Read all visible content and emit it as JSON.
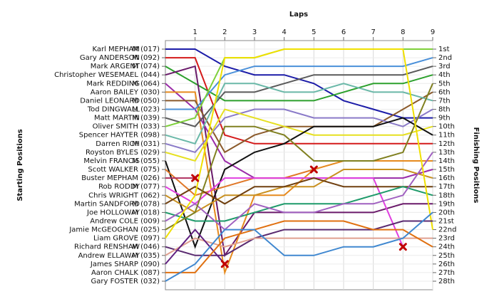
{
  "chart_data": {
    "type": "line",
    "x_label": "Laps",
    "y_label": "Starting Positions",
    "y2_label": "Finishing Positions",
    "x": [
      0,
      1,
      2,
      3,
      4,
      5,
      6,
      7,
      8,
      9
    ],
    "xlim": [
      0,
      9
    ],
    "xticks": [
      1,
      2,
      3,
      4,
      5,
      6,
      7,
      8,
      9
    ],
    "ylim": [
      1,
      28
    ],
    "y_inverted": true,
    "grid": true,
    "y2lim": [
      1,
      28
    ],
    "y2ticks": [
      {
        "value": 1,
        "label": "1st"
      },
      {
        "value": 2,
        "label": "2nd"
      },
      {
        "value": 3,
        "label": "3rd"
      },
      {
        "value": 4,
        "label": "4th"
      },
      {
        "value": 5,
        "label": "5th"
      },
      {
        "value": 6,
        "label": "6th"
      },
      {
        "value": 7,
        "label": "7th"
      },
      {
        "value": 8,
        "label": "8th"
      },
      {
        "value": 9,
        "label": "9th"
      },
      {
        "value": 10,
        "label": "10th"
      },
      {
        "value": 11,
        "label": "11th"
      },
      {
        "value": 12,
        "label": "12th"
      },
      {
        "value": 13,
        "label": "13th"
      },
      {
        "value": 14,
        "label": "14th"
      },
      {
        "value": 15,
        "label": "15th"
      },
      {
        "value": 16,
        "label": "16th"
      },
      {
        "value": 17,
        "label": "17th"
      },
      {
        "value": 18,
        "label": "18th"
      },
      {
        "value": 19,
        "label": "19th"
      },
      {
        "value": 20,
        "label": "20th"
      },
      {
        "value": 21,
        "label": "21st"
      },
      {
        "value": 22,
        "label": "22nd"
      },
      {
        "value": 23,
        "label": "23rd"
      },
      {
        "value": 24,
        "label": "24th"
      },
      {
        "value": 25,
        "label": "25th"
      },
      {
        "value": 26,
        "label": "26th"
      },
      {
        "value": 27,
        "label": "27th"
      },
      {
        "value": 28,
        "label": "28th"
      }
    ],
    "series": [
      {
        "name": "Karl MEPHAM",
        "class": "M (017)",
        "color": "#1c1ca8",
        "values": [
          1,
          1,
          3,
          4,
          4,
          5,
          7,
          8,
          9,
          9
        ]
      },
      {
        "name": "Gary ANDERSON",
        "class": "M (092)",
        "color": "#d41a1a",
        "values": [
          2,
          2,
          11,
          12,
          12,
          12,
          12,
          12,
          12,
          12
        ]
      },
      {
        "name": "Mark ARGENT",
        "class": "M (074)",
        "color": "#2ca02c",
        "values": [
          3,
          5,
          7,
          7,
          7,
          7,
          6,
          5,
          5,
          4
        ]
      },
      {
        "name": "Christopher WESEMAEL (044)",
        "color": "#6a1a6a",
        "values": [
          4,
          3,
          25,
          20,
          20,
          20,
          20,
          20,
          19,
          19
        ]
      },
      {
        "name": "Mark REDDING",
        "class": "M (064)",
        "color": "#9a2ba8",
        "values": [
          5,
          8,
          14,
          16,
          16,
          16,
          16,
          16,
          16,
          15
        ]
      },
      {
        "name": "Aaron BAILEY (030)",
        "color": "#e68a1e",
        "values": [
          6,
          6,
          27,
          18,
          18,
          15,
          14,
          14,
          14,
          14
        ]
      },
      {
        "name": "Daniel LEONARD",
        "class": "M (050)",
        "color": "#8b5a2b",
        "values": [
          7,
          7,
          13,
          11,
          10,
          10,
          10,
          10,
          8,
          6
        ]
      },
      {
        "name": "Tod DINGWALL",
        "class": "M (023)",
        "color": "#4a90d9",
        "values": [
          8,
          8,
          4,
          3,
          3,
          3,
          3,
          3,
          3,
          2
        ]
      },
      {
        "name": "Matt MARTIN",
        "class": "M (039)",
        "color": "#5a5a5a",
        "values": [
          9,
          10,
          6,
          6,
          5,
          4,
          4,
          4,
          4,
          3
        ]
      },
      {
        "name": "Oliver SMITH (033)",
        "color": "#7ed03a",
        "values": [
          10,
          9,
          2,
          2,
          1,
          1,
          1,
          1,
          1,
          1
        ]
      },
      {
        "name": "Spencer HAYTER (098)",
        "color": "#6ab8a8",
        "values": [
          11,
          12,
          5,
          5,
          6,
          6,
          5,
          6,
          6,
          7
        ]
      },
      {
        "name": "Darren RICH",
        "class": "M (031)",
        "color": "#8a7ac8",
        "values": [
          12,
          13,
          9,
          8,
          8,
          9,
          9,
          9,
          10,
          8
        ]
      },
      {
        "name": "Royston BYLES (029)",
        "color": "#e6e020",
        "values": [
          13,
          14,
          8,
          9,
          10,
          11,
          11,
          11,
          11,
          10
        ]
      },
      {
        "name": "Melvin FRANCIS",
        "class": "M (055)",
        "color": "#111111",
        "values": [
          14,
          24,
          15,
          13,
          12,
          10,
          10,
          10,
          9,
          11
        ]
      },
      {
        "name": "Scott WALKER (075)",
        "color": "#e07828",
        "values": [
          15,
          18,
          17,
          16,
          16,
          15,
          null,
          null,
          null,
          null
        ]
      },
      {
        "name": "Buster MEPHAM (026)",
        "color": "#b03060",
        "values": [
          16,
          16,
          null,
          null,
          null,
          null,
          null,
          null,
          null,
          null
        ]
      },
      {
        "name": "Rob RODDY",
        "class": "M (077)",
        "color": "#e040e0",
        "values": [
          17,
          19,
          16,
          16,
          16,
          16,
          16,
          16,
          24,
          null
        ]
      },
      {
        "name": "Chris WRIGHT (062)",
        "color": "#c89020",
        "values": [
          18,
          20,
          18,
          18,
          17,
          17,
          15,
          15,
          15,
          16
        ]
      },
      {
        "name": "Martin SANDFORD",
        "class": "M (078)",
        "color": "#704010",
        "values": [
          19,
          17,
          19,
          17,
          17,
          16,
          17,
          17,
          17,
          17
        ]
      },
      {
        "name": "Joe HOLLOWAY",
        "class": "M (018)",
        "color": "#1e9a6a",
        "values": [
          20,
          21,
          21,
          20,
          19,
          19,
          19,
          18,
          17,
          18
        ]
      },
      {
        "name": "Andrew COLE (009)",
        "color": "#a060c0",
        "values": [
          21,
          19,
          22,
          19,
          20,
          20,
          19,
          19,
          18,
          13
        ]
      },
      {
        "name": "Jamie McGEOGHAN (025)",
        "color": "#808020",
        "values": [
          22,
          20,
          10,
          10,
          11,
          14,
          14,
          14,
          13,
          5
        ]
      },
      {
        "name": "Liam GROVE (097)",
        "color": "#f0e000",
        "values": [
          23,
          18,
          2,
          2,
          1,
          1,
          1,
          1,
          1,
          22
        ]
      },
      {
        "name": "Richard RENSHAW",
        "class": "M (046)",
        "color": "#5a2a70",
        "values": [
          24,
          25,
          25,
          23,
          22,
          22,
          22,
          22,
          21,
          21
        ]
      },
      {
        "name": "Andrew ELLAWAY",
        "class": "M (035)",
        "color": "#e0a090",
        "values": [
          25,
          23,
          24,
          23,
          23,
          23,
          23,
          23,
          23,
          23
        ]
      },
      {
        "name": "James SHARP (090)",
        "color": "#602080",
        "values": [
          26,
          22,
          26,
          null,
          null,
          null,
          null,
          null,
          null,
          null
        ]
      },
      {
        "name": "Aaron CHALK (087)",
        "color": "#e07010",
        "values": [
          27,
          27,
          23,
          22,
          21,
          21,
          21,
          22,
          22,
          24
        ]
      },
      {
        "name": "Gary FOSTER (032)",
        "color": "#4088d0",
        "values": [
          28,
          26,
          22,
          22,
          25,
          25,
          24,
          24,
          23,
          20
        ]
      }
    ],
    "retirements": [
      {
        "lap": 1,
        "position": 16
      },
      {
        "lap": 2,
        "position": 26
      },
      {
        "lap": 5,
        "position": 15
      },
      {
        "lap": 8,
        "position": 24
      }
    ]
  }
}
